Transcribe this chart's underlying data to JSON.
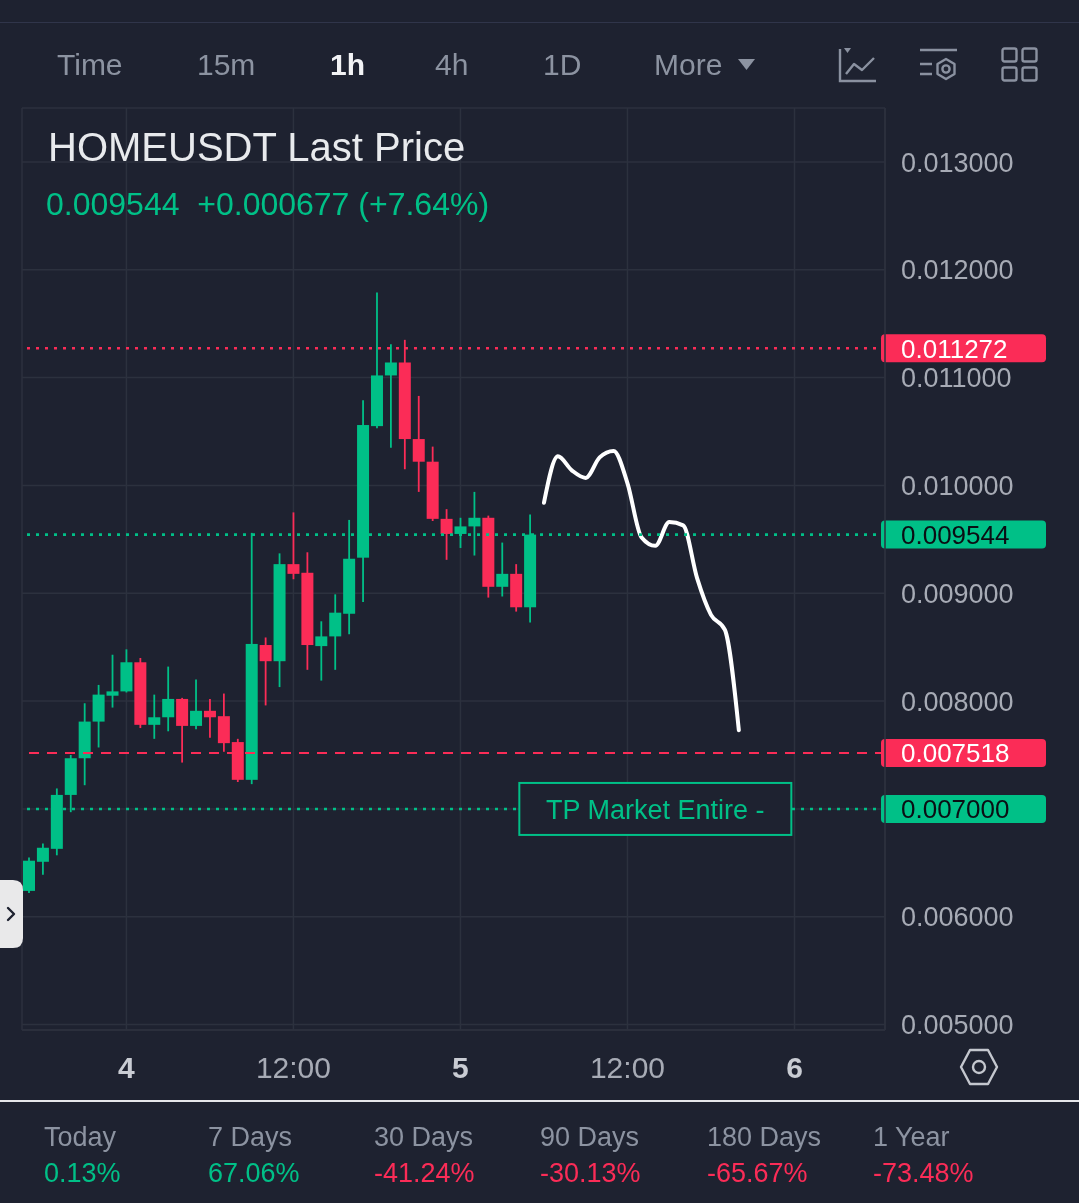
{
  "chart_data": {
    "type": "candlestick",
    "title": "HOMEUSDT Last Price",
    "subtitle": "0.009544  +0.000677 (+7.64%)",
    "categories": [
      null,
      null,
      null,
      null,
      null,
      null,
      null,
      "4",
      null,
      null,
      null,
      null,
      null,
      null,
      null,
      null,
      null,
      null,
      null,
      "12:00",
      null,
      null,
      null,
      null,
      null,
      null,
      null,
      null,
      null,
      null,
      null,
      "5",
      null,
      null,
      null,
      null,
      null,
      null,
      null,
      null,
      null,
      null,
      null,
      "12:00",
      null,
      null,
      null,
      null,
      null,
      null,
      null,
      null,
      null,
      null,
      null,
      "6",
      null,
      null,
      null,
      null,
      null,
      null
    ],
    "ohlc": [
      [
        0.00624,
        0.00655,
        0.00622,
        0.00652
      ],
      [
        0.00651,
        0.00668,
        0.00639,
        0.00664
      ],
      [
        0.00663,
        0.00719,
        0.00657,
        0.00713
      ],
      [
        0.00713,
        0.0075,
        0.00697,
        0.00747
      ],
      [
        0.00747,
        0.00798,
        0.00722,
        0.00781
      ],
      [
        0.00781,
        0.00815,
        0.00757,
        0.00806
      ],
      [
        0.00805,
        0.00843,
        0.00794,
        0.00809
      ],
      [
        0.00809,
        0.00848,
        0.00808,
        0.00836
      ],
      [
        0.00836,
        0.0084,
        0.00775,
        0.00778
      ],
      [
        0.00778,
        0.00806,
        0.00765,
        0.00785
      ],
      [
        0.00785,
        0.00832,
        0.00772,
        0.00802
      ],
      [
        0.00802,
        0.00803,
        0.00743,
        0.00777
      ],
      [
        0.00777,
        0.0082,
        0.00774,
        0.00791
      ],
      [
        0.00791,
        0.00802,
        0.00766,
        0.00785
      ],
      [
        0.00786,
        0.00807,
        0.00753,
        0.00761
      ],
      [
        0.00762,
        0.00765,
        0.00725,
        0.00727
      ],
      [
        0.00727,
        0.00956,
        0.00723,
        0.00853
      ],
      [
        0.00852,
        0.00859,
        0.00796,
        0.00837
      ],
      [
        0.00837,
        0.00937,
        0.00813,
        0.00927
      ],
      [
        0.00927,
        0.00975,
        0.00913,
        0.00918
      ],
      [
        0.00919,
        0.00938,
        0.00829,
        0.00852
      ],
      [
        0.00851,
        0.00874,
        0.00819,
        0.0086
      ],
      [
        0.0086,
        0.00899,
        0.00829,
        0.00882
      ],
      [
        0.00881,
        0.00968,
        0.00862,
        0.00932
      ],
      [
        0.00933,
        0.01079,
        0.00892,
        0.01056
      ],
      [
        0.01055,
        0.01179,
        0.01053,
        0.01102
      ],
      [
        0.01102,
        0.01131,
        0.01035,
        0.01114
      ],
      [
        0.01114,
        0.01135,
        0.01015,
        0.01043
      ],
      [
        0.01043,
        0.01083,
        0.00994,
        0.01022
      ],
      [
        0.01022,
        0.01036,
        0.00967,
        0.00969
      ],
      [
        0.00969,
        0.00978,
        0.00931,
        0.00955
      ],
      [
        0.00955,
        0.0097,
        0.00942,
        0.00962
      ],
      [
        0.00962,
        0.00994,
        0.00935,
        0.0097
      ],
      [
        0.0097,
        0.00972,
        0.00896,
        0.00906
      ],
      [
        0.00906,
        0.00947,
        0.00897,
        0.00918
      ],
      [
        0.00918,
        0.00927,
        0.00883,
        0.00887
      ],
      [
        0.00887,
        0.00973,
        0.00873,
        0.009544
      ],
      null,
      null,
      null,
      null,
      null,
      null,
      null,
      null,
      null,
      null,
      null,
      null,
      null,
      null,
      null,
      null,
      null,
      null,
      null,
      null,
      null,
      null,
      null,
      null,
      null
    ],
    "colors": [
      "#00c087",
      "#00c087",
      "#00c087",
      "#00c087",
      "#00c087",
      "#00c087",
      "#00c087",
      "#00c087",
      "#fb2c57",
      "#00c087",
      "#00c087",
      "#fb2c57",
      "#00c087",
      "#fb2c57",
      "#fb2c57",
      "#fb2c57",
      "#00c087",
      "#fb2c57",
      "#00c087",
      "#fb2c57",
      "#fb2c57",
      "#00c087",
      "#00c087",
      "#00c087",
      "#00c087",
      "#00c087",
      "#00c087",
      "#fb2c57",
      "#fb2c57",
      "#fb2c57",
      "#fb2c57",
      "#00c087",
      "#00c087",
      "#fb2c57",
      "#00c087",
      "#fb2c57",
      "#00c087",
      null,
      null,
      null,
      null,
      null,
      null,
      null,
      null,
      null,
      null,
      null,
      null,
      null,
      null,
      null,
      null,
      null,
      null,
      null,
      null,
      null,
      null,
      null,
      null,
      null
    ],
    "series": [
      {
        "type": "line",
        "color": "#ffffff",
        "values": [
          null,
          null,
          null,
          null,
          null,
          null,
          null,
          null,
          null,
          null,
          null,
          null,
          null,
          null,
          null,
          null,
          null,
          null,
          null,
          null,
          null,
          null,
          null,
          null,
          null,
          null,
          null,
          null,
          null,
          null,
          null,
          null,
          null,
          null,
          null,
          null,
          null,
          0.00984,
          0.01027,
          0.01014,
          0.01007,
          0.01026,
          0.01032,
          0.01002,
          0.00952,
          0.00944,
          0.00966,
          0.00963,
          0.00914,
          0.0088,
          0.00866,
          0.00773,
          null,
          null,
          null,
          null,
          null,
          null,
          null,
          null,
          null,
          null
        ]
      }
    ],
    "ylim": [
      0.00495,
      0.0135
    ],
    "yticks": [
      {
        "value": 0.005,
        "label": "0.005000"
      },
      {
        "value": 0.006,
        "label": "0.006000"
      },
      {
        "value": 0.007,
        "label": null
      },
      {
        "value": 0.008,
        "label": "0.008000"
      },
      {
        "value": 0.009,
        "label": "0.009000"
      },
      {
        "value": 0.01,
        "label": "0.010000"
      },
      {
        "value": 0.011,
        "label": "0.011000"
      },
      {
        "value": 0.012,
        "label": "0.012000"
      },
      {
        "value": 0.013,
        "label": "0.013000"
      }
    ],
    "grid": true,
    "ref_lines": [
      {
        "axis": "y",
        "value": 0.011272,
        "label": "0.011272",
        "color": "#fb2c57",
        "line_style": "dotted"
      },
      {
        "axis": "y",
        "value": 0.009544,
        "label": "0.009544",
        "color": "#00c087",
        "line_style": "dotted"
      },
      {
        "axis": "y",
        "value": 0.007518,
        "label": "0.007518",
        "color": "#fb2c57",
        "line_style": "dashed"
      },
      {
        "axis": "y",
        "value": 0.007,
        "label": "0.007000",
        "color": "#00c087",
        "line_style": "dotted"
      }
    ],
    "annotations": [
      {
        "text": "TP Market Entire -",
        "y": 0.007
      },
      "Time",
      "15m",
      "1h",
      "4h",
      "1D",
      "More",
      "Today",
      "0.13%",
      "7 Days",
      "67.06%",
      "30 Days",
      "-41.24%",
      "90 Days",
      "-30.13%",
      "180 Days",
      "-65.67%",
      "1 Year",
      "-73.48%"
    ]
  }
}
